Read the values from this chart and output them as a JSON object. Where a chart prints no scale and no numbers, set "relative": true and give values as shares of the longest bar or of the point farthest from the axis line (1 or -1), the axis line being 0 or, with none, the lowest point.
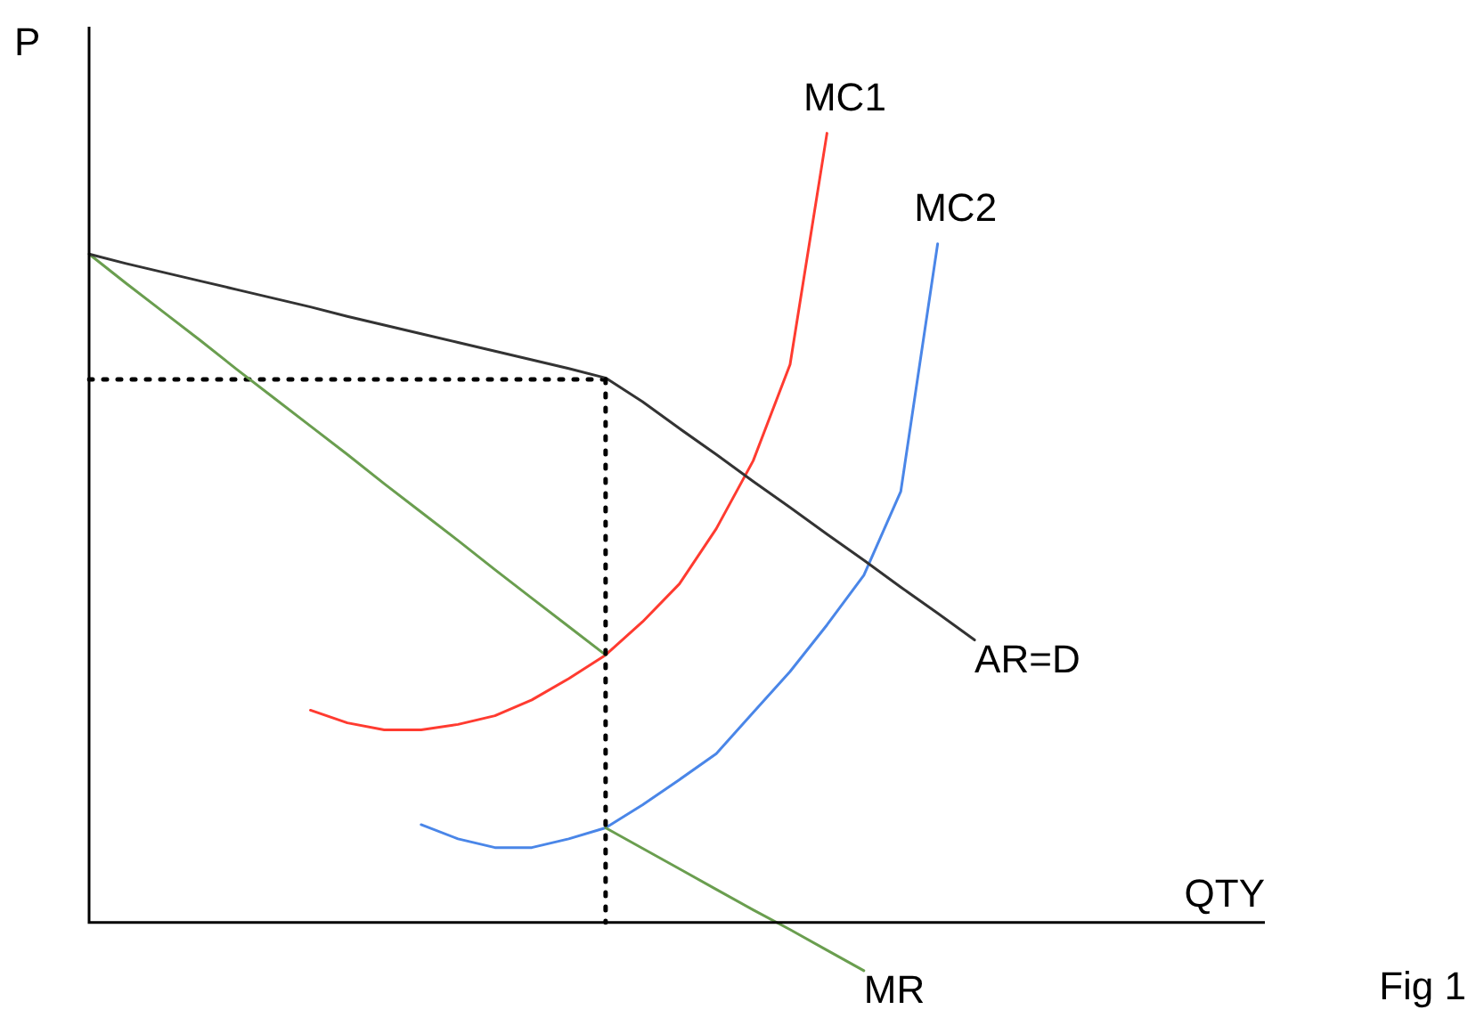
{
  "chart_data": {
    "type": "line",
    "relative": true,
    "xlabel": "QTY",
    "ylabel": "P",
    "annotations": [
      "Fig 1"
    ],
    "marker": "none",
    "categories": [
      null,
      null,
      null,
      null,
      null,
      null,
      null,
      null,
      null,
      null,
      null,
      null,
      null,
      null,
      null,
      null,
      null,
      null,
      null,
      null,
      null,
      null,
      null,
      null,
      null,
      null,
      null,
      null,
      null,
      null,
      null,
      null
    ],
    "series": [
      {
        "name": "AR=D",
        "color": "#333333",
        "values": [
          0.847,
          0.835,
          0.824,
          0.813,
          0.802,
          0.791,
          0.78,
          0.768,
          0.757,
          0.746,
          0.735,
          0.724,
          0.713,
          0.702,
          0.69,
          0.66,
          0.626,
          0.593,
          0.559,
          0.526,
          0.492,
          0.459,
          0.425,
          0.392,
          0.358,
          null,
          null,
          null,
          null,
          null,
          null,
          null
        ]
      },
      {
        "color": "#6a9e4f",
        "values": [
          0.847,
          0.81,
          0.774,
          0.738,
          0.701,
          0.665,
          0.629,
          0.593,
          0.556,
          0.52,
          0.484,
          0.447,
          0.411,
          0.375,
          0.339,
          null,
          null,
          null,
          null,
          null,
          null,
          null,
          null,
          null,
          null,
          null,
          null,
          null,
          null,
          null,
          null,
          null
        ]
      },
      {
        "name": "MR",
        "color": "#6a9e4f",
        "values": [
          null,
          null,
          null,
          null,
          null,
          null,
          null,
          null,
          null,
          null,
          null,
          null,
          null,
          null,
          0.12,
          0.094,
          0.068,
          0.042,
          0.016,
          -0.009,
          -0.035,
          -0.061,
          null,
          null,
          null,
          null,
          null,
          null,
          null,
          null,
          null,
          null
        ]
      },
      {
        "name": "MC1",
        "color": "#ff3b30",
        "values": [
          null,
          null,
          null,
          null,
          null,
          null,
          0.269,
          0.253,
          0.244,
          0.244,
          0.251,
          0.262,
          0.282,
          0.309,
          0.339,
          0.381,
          0.429,
          0.499,
          0.585,
          0.707,
          1.0,
          null,
          null,
          null,
          null,
          null,
          null,
          null,
          null,
          null,
          null,
          null
        ]
      },
      {
        "name": "MC2",
        "color": "#4a86e8",
        "values": [
          null,
          null,
          null,
          null,
          null,
          null,
          null,
          null,
          null,
          0.124,
          0.106,
          0.095,
          0.095,
          0.106,
          0.12,
          0.149,
          0.181,
          0.214,
          0.266,
          0.318,
          0.377,
          0.44,
          0.546,
          0.86,
          null,
          null,
          null,
          null,
          null,
          null,
          null,
          null
        ]
      },
      {
        "color": "#000000",
        "line_style": "dotted",
        "values": [
          0.688,
          0.688,
          0.688,
          0.688,
          0.688,
          0.688,
          0.688,
          0.688,
          0.688,
          0.688,
          0.688,
          0.688,
          0.688,
          0.688,
          0.688,
          null,
          null,
          null,
          null,
          null,
          null,
          null,
          null,
          null,
          null,
          null,
          null,
          null,
          null,
          null,
          null,
          null
        ]
      }
    ]
  }
}
